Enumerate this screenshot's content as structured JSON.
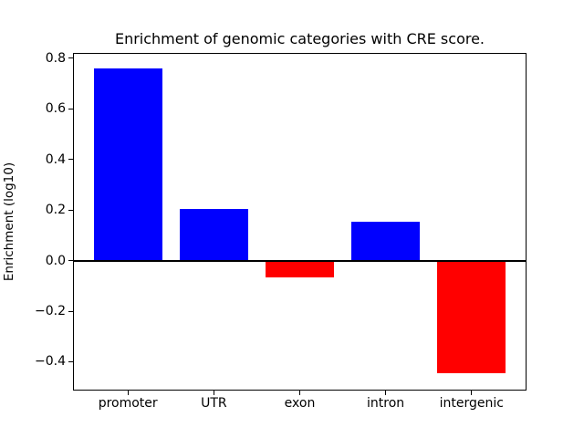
{
  "chart_data": {
    "type": "bar",
    "title": "Enrichment of genomic categories with CRE score.",
    "xlabel": "",
    "ylabel": "Enrichment (log10)",
    "categories": [
      "promoter",
      "UTR",
      "exon",
      "intron",
      "intergenic"
    ],
    "values": [
      0.76,
      0.205,
      -0.067,
      0.153,
      -0.445
    ],
    "bar_colors": [
      "#0000ff",
      "#0000ff",
      "#ff0000",
      "#0000ff",
      "#ff0000"
    ],
    "positive_color": "#0000ff",
    "negative_color": "#ff0000",
    "ylim": [
      -0.514,
      0.821
    ],
    "yticks": [
      0.8,
      0.6,
      0.4,
      0.2,
      0.0,
      -0.2,
      -0.4
    ],
    "ytick_labels": [
      "0.8",
      "0.6",
      "0.4",
      "0.2",
      "0.0",
      "−0.2",
      "−0.4"
    ],
    "zero_line": true,
    "grid": false,
    "legend": null
  }
}
